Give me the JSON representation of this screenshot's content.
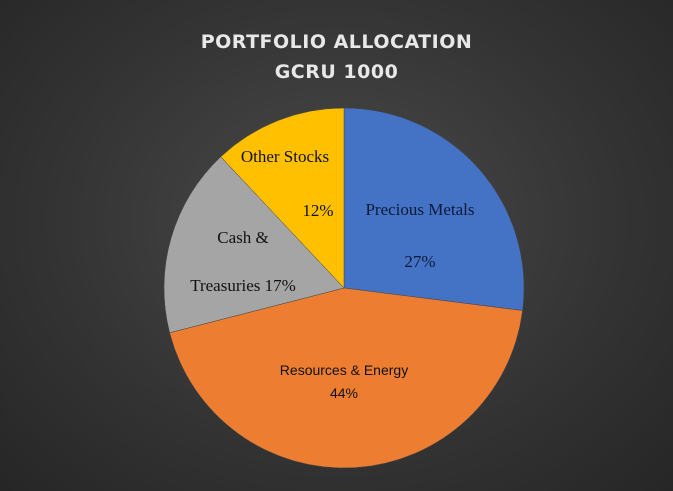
{
  "chart_data": {
    "type": "pie",
    "title": "PORTFOLIO ALLOCATION",
    "subtitle": "GCRU 1000",
    "categories": [
      "Precious Metals",
      "Resources & Energy",
      "Cash & Treasuries",
      "Other Stocks"
    ],
    "values": [
      27,
      44,
      17,
      12
    ],
    "value_labels": [
      "27%",
      "44%",
      "17%",
      "12%"
    ],
    "colors": [
      "#4472c4",
      "#ed7d31",
      "#a5a5a5",
      "#ffc000"
    ]
  }
}
